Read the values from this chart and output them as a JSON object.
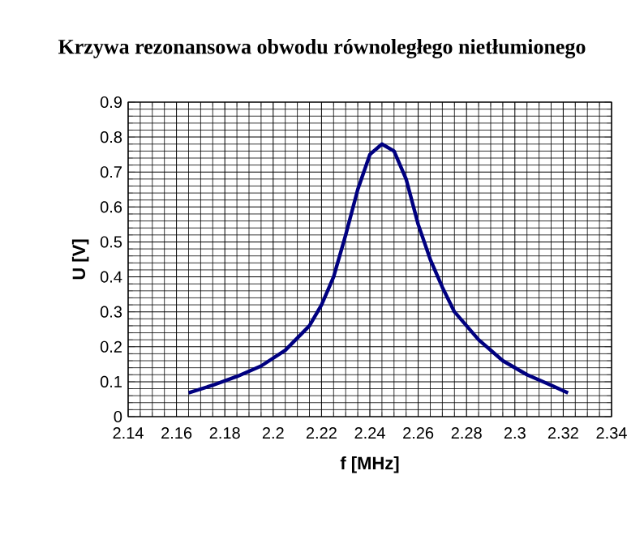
{
  "chart_data": {
    "type": "line",
    "title": "Krzywa rezonansowa obwodu równoległego nietłumionego",
    "xlabel": "f [MHz]",
    "ylabel": "U [V]",
    "x": [
      2.165,
      2.175,
      2.185,
      2.195,
      2.205,
      2.215,
      2.22,
      2.225,
      2.23,
      2.235,
      2.24,
      2.245,
      2.25,
      2.255,
      2.26,
      2.265,
      2.27,
      2.275,
      2.285,
      2.295,
      2.305,
      2.315,
      2.322
    ],
    "series": [
      {
        "color": "#000080",
        "values": [
          0.068,
          0.09,
          0.115,
          0.145,
          0.19,
          0.26,
          0.32,
          0.4,
          0.52,
          0.65,
          0.75,
          0.78,
          0.76,
          0.68,
          0.55,
          0.45,
          0.37,
          0.3,
          0.22,
          0.16,
          0.12,
          0.09,
          0.068
        ]
      }
    ],
    "xlim": [
      2.14,
      2.34
    ],
    "ylim": [
      0,
      0.9
    ],
    "xticks": [
      2.14,
      2.16,
      2.18,
      2.2,
      2.22,
      2.24,
      2.26,
      2.28,
      2.3,
      2.32,
      2.34
    ],
    "yticks": [
      0,
      0.1,
      0.2,
      0.3,
      0.4,
      0.5,
      0.6,
      0.7,
      0.8,
      0.9
    ],
    "grid": true,
    "marker": "none",
    "line_style": "solid"
  }
}
